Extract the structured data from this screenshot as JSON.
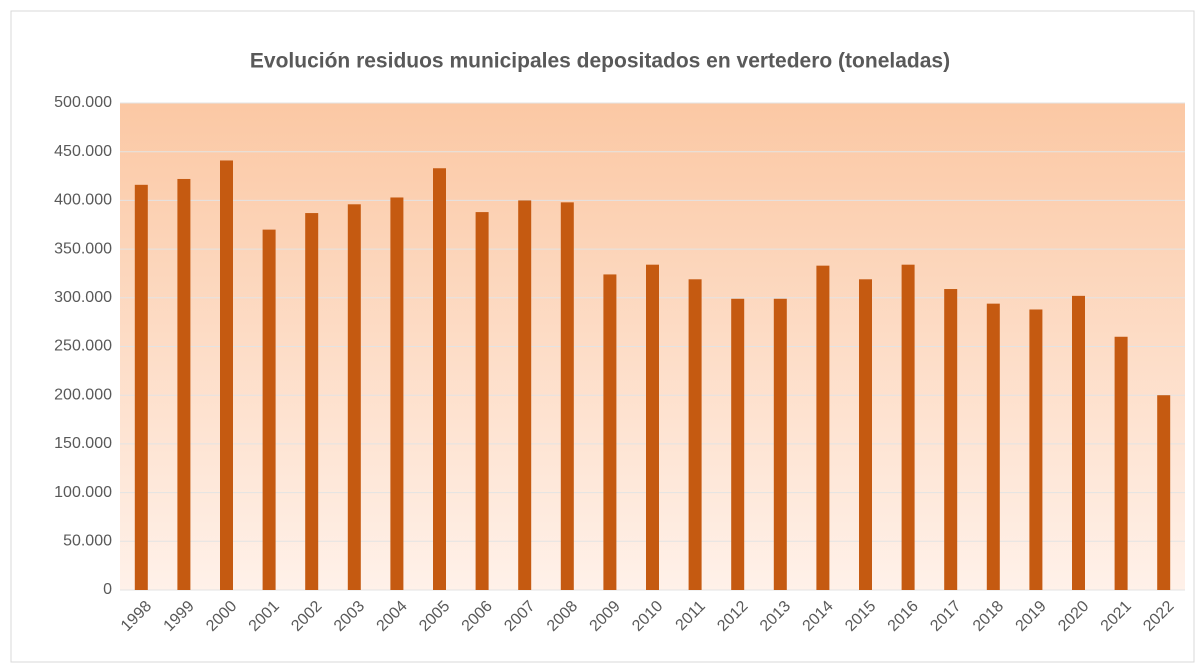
{
  "chart_data": {
    "type": "bar",
    "title": "Evolución  residuos municipales depositados  en vertedero (toneladas)",
    "categories": [
      "1998",
      "1999",
      "2000",
      "2001",
      "2002",
      "2003",
      "2004",
      "2005",
      "2006",
      "2007",
      "2008",
      "2009",
      "2010",
      "2011",
      "2012",
      "2013",
      "2014",
      "2015",
      "2016",
      "2017",
      "2018",
      "2019",
      "2020",
      "2021",
      "2022"
    ],
    "values": [
      416000,
      422000,
      441000,
      370000,
      387000,
      396000,
      403000,
      433000,
      388000,
      400000,
      398000,
      324000,
      334000,
      319000,
      299000,
      299000,
      333000,
      319000,
      334000,
      309000,
      294000,
      288000,
      302000,
      260000,
      200000
    ],
    "color": "#c55a11",
    "ylim": [
      0,
      500000
    ],
    "yticks": [
      0,
      {
        "value": 50000,
        "label": "50.000"
      },
      {
        "value": 100000,
        "label": "100.000"
      },
      {
        "value": 150000,
        "label": "150.000"
      },
      {
        "value": 200000,
        "label": "200.000"
      },
      {
        "value": 250000,
        "label": "250.000"
      },
      {
        "value": 300000,
        "label": "300.000"
      },
      {
        "value": 350000,
        "label": "350.000"
      },
      {
        "value": 400000,
        "label": "400.000"
      },
      {
        "value": 450000,
        "label": "450.000"
      },
      {
        "value": 500000,
        "label": "500.000"
      }
    ],
    "grid": true
  }
}
